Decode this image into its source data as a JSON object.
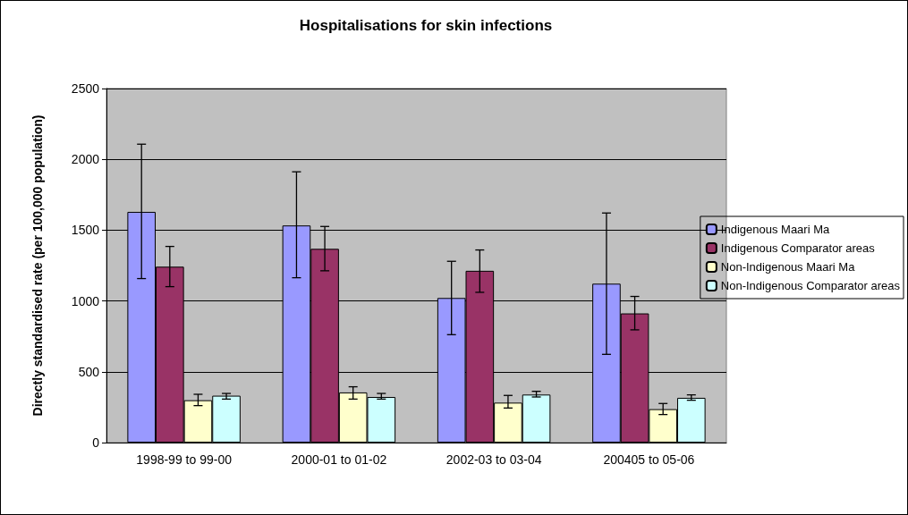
{
  "chart_data": {
    "type": "bar",
    "title": "Hospitalisations for skin infections",
    "ylabel": "Directly standardised rate (per 100,000 population)",
    "categories": [
      "1998-99 to 99-00",
      "2000-01 to 01-02",
      "2002-03 to 03-04",
      "200405 to 05-06"
    ],
    "series": [
      {
        "name": "Indigenous Maari Ma",
        "color": "#9999ff",
        "values": [
          1629,
          1533,
          1021,
          1122
        ],
        "errors": [
          [
            1158,
            2107
          ],
          [
            1164,
            1912
          ],
          [
            762,
            1280
          ],
          [
            623,
            1621
          ]
        ]
      },
      {
        "name": "Indigenous Comparator areas",
        "color": "#993366",
        "values": [
          1242,
          1368,
          1213,
          912
        ],
        "errors": [
          [
            1101,
            1385
          ],
          [
            1213,
            1526
          ],
          [
            1061,
            1360
          ],
          [
            796,
            1032
          ]
        ]
      },
      {
        "name": "Non-Indigenous Maari Ma",
        "color": "#ffffcc",
        "values": [
          299,
          354,
          282,
          236
        ],
        "errors": [
          [
            261,
            341
          ],
          [
            307,
            394
          ],
          [
            244,
            333
          ],
          [
            198,
            276
          ]
        ]
      },
      {
        "name": "Non-Indigenous Comparator areas",
        "color": "#ccffff",
        "values": [
          331,
          322,
          339,
          316
        ],
        "errors": [
          [
            307,
            347
          ],
          [
            307,
            347
          ],
          [
            322,
            362
          ],
          [
            299,
            337
          ]
        ]
      }
    ],
    "ylim": [
      0,
      2500
    ],
    "yticks": [
      0,
      500,
      1000,
      1500,
      2000,
      2500
    ],
    "grid": "y",
    "legend": "right"
  }
}
